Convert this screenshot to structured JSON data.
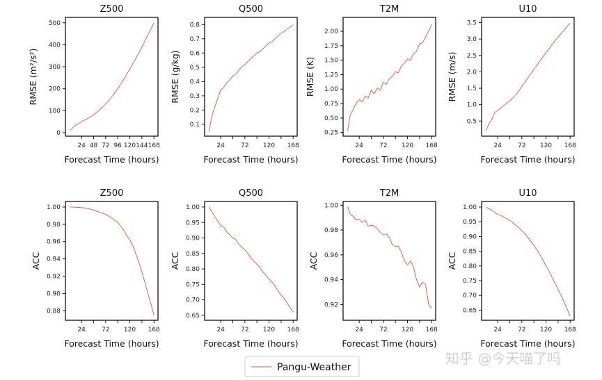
{
  "colors": {
    "series": "#e0503c",
    "axis": "#111111",
    "watermark": "#d0d0d0"
  },
  "legend": {
    "label": "Pangu-Weather",
    "placement": "bottom-center"
  },
  "watermark": "知乎 @今天喵了吗",
  "chart_data": [
    {
      "type": "line",
      "title": "Z500",
      "xlabel": "Forecast Time (hours)",
      "ylabel": "RMSE (m²/s²)",
      "xlim": [
        -8,
        176
      ],
      "ylim": [
        -16,
        525
      ],
      "xticks": [
        24,
        48,
        72,
        96,
        120,
        144,
        168
      ],
      "xtick_labels": [
        "24",
        "48",
        "72",
        "96",
        "120",
        "144",
        "168"
      ],
      "yticks": [
        0,
        100,
        200,
        300,
        400,
        500
      ],
      "ytick_labels": [
        "0",
        "100",
        "200",
        "300",
        "400",
        "500"
      ],
      "series": [
        {
          "name": "Pangu-Weather",
          "x": [
            1,
            6,
            12,
            18,
            24,
            30,
            36,
            42,
            48,
            54,
            60,
            66,
            72,
            78,
            84,
            90,
            96,
            102,
            108,
            114,
            120,
            126,
            132,
            138,
            144,
            150,
            156,
            162,
            168
          ],
          "y": [
            10,
            20,
            34,
            40,
            50,
            56,
            64,
            72,
            82,
            92,
            104,
            117,
            131,
            146,
            163,
            181,
            200,
            221,
            243,
            266,
            290,
            314,
            338,
            363,
            390,
            417,
            444,
            472,
            500
          ]
        }
      ]
    },
    {
      "type": "line",
      "title": "Q500",
      "xlabel": "Forecast Time (hours)",
      "ylabel": "RMSE (g/kg)",
      "xlim": [
        -8,
        176
      ],
      "ylim": [
        0.017,
        0.85
      ],
      "xticks": [
        24,
        48,
        72,
        96,
        120,
        144,
        168
      ],
      "xtick_labels": [
        "24",
        "",
        "72",
        "",
        "120",
        "",
        "168"
      ],
      "yticks": [
        0.1,
        0.2,
        0.3,
        0.4,
        0.5,
        0.6,
        0.7,
        0.8
      ],
      "ytick_labels": [
        "0.1",
        "0.2",
        "0.3",
        "0.4",
        "0.5",
        "0.6",
        "0.7",
        "0.8"
      ],
      "series": [
        {
          "name": "Pangu-Weather",
          "x": [
            1,
            6,
            12,
            18,
            24,
            30,
            36,
            42,
            48,
            54,
            60,
            66,
            72,
            78,
            84,
            90,
            96,
            102,
            108,
            114,
            120,
            126,
            132,
            138,
            144,
            150,
            156,
            162,
            168
          ],
          "y": [
            0.05,
            0.15,
            0.22,
            0.28,
            0.34,
            0.36,
            0.39,
            0.41,
            0.44,
            0.45,
            0.48,
            0.5,
            0.52,
            0.54,
            0.56,
            0.58,
            0.6,
            0.61,
            0.63,
            0.65,
            0.67,
            0.68,
            0.7,
            0.72,
            0.74,
            0.75,
            0.77,
            0.78,
            0.8
          ]
        }
      ]
    },
    {
      "type": "line",
      "title": "T2M",
      "xlabel": "Forecast Time (hours)",
      "ylabel": "RMSE (K)",
      "xlim": [
        -8,
        176
      ],
      "ylim": [
        0.186,
        2.24
      ],
      "xticks": [
        24,
        48,
        72,
        96,
        120,
        144,
        168
      ],
      "xtick_labels": [
        "24",
        "",
        "72",
        "",
        "120",
        "",
        "168"
      ],
      "yticks": [
        0.25,
        0.5,
        0.75,
        1.0,
        1.25,
        1.5,
        1.75,
        2.0
      ],
      "ytick_labels": [
        "0.25",
        "0.50",
        "0.75",
        "1.00",
        "1.25",
        "1.50",
        "1.75",
        "2.00"
      ],
      "series": [
        {
          "name": "Pangu-Weather",
          "x": [
            1,
            6,
            12,
            18,
            24,
            30,
            36,
            42,
            48,
            54,
            60,
            66,
            72,
            78,
            84,
            90,
            96,
            102,
            108,
            114,
            120,
            126,
            132,
            138,
            144,
            150,
            156,
            162,
            168
          ],
          "y": [
            0.28,
            0.55,
            0.65,
            0.75,
            0.82,
            0.78,
            0.88,
            0.85,
            0.98,
            0.92,
            1.02,
            0.98,
            1.12,
            1.08,
            1.18,
            1.22,
            1.3,
            1.28,
            1.4,
            1.45,
            1.52,
            1.5,
            1.62,
            1.65,
            1.78,
            1.8,
            1.9,
            2.0,
            2.12
          ]
        }
      ]
    },
    {
      "type": "line",
      "title": "U10",
      "xlabel": "Forecast Time (hours)",
      "ylabel": "RMSE (m/s)",
      "xlim": [
        -8,
        176
      ],
      "ylim": [
        0.04,
        3.66
      ],
      "xticks": [
        24,
        48,
        72,
        96,
        120,
        144,
        168
      ],
      "xtick_labels": [
        "24",
        "",
        "72",
        "",
        "120",
        "",
        "168"
      ],
      "yticks": [
        0.5,
        1.0,
        1.5,
        2.0,
        2.5,
        3.0,
        3.5
      ],
      "ytick_labels": [
        "0.5",
        "1.0",
        "1.5",
        "2.0",
        "2.5",
        "3.0",
        "3.5"
      ],
      "series": [
        {
          "name": "Pangu-Weather",
          "x": [
            1,
            6,
            12,
            18,
            24,
            30,
            36,
            42,
            48,
            54,
            60,
            66,
            72,
            78,
            84,
            90,
            96,
            102,
            108,
            114,
            120,
            126,
            132,
            138,
            144,
            150,
            156,
            162,
            168
          ],
          "y": [
            0.2,
            0.4,
            0.55,
            0.75,
            0.82,
            0.9,
            0.97,
            1.05,
            1.12,
            1.2,
            1.3,
            1.42,
            1.55,
            1.68,
            1.82,
            1.95,
            2.08,
            2.2,
            2.33,
            2.46,
            2.58,
            2.7,
            2.83,
            2.95,
            3.05,
            3.17,
            3.27,
            3.38,
            3.49
          ]
        }
      ]
    },
    {
      "type": "line",
      "title": "Z500",
      "xlabel": "Forecast Time (hours)",
      "ylabel": "ACC",
      "xlim": [
        -8,
        176
      ],
      "ylim": [
        0.869,
        1.0064
      ],
      "xticks": [
        24,
        48,
        72,
        96,
        120,
        144,
        168
      ],
      "xtick_labels": [
        "24",
        "",
        "72",
        "",
        "120",
        "",
        "168"
      ],
      "yticks": [
        0.88,
        0.9,
        0.92,
        0.94,
        0.96,
        0.98,
        1.0
      ],
      "ytick_labels": [
        "0.88",
        "0.90",
        "0.92",
        "0.94",
        "0.96",
        "0.98",
        "1.00"
      ],
      "series": [
        {
          "name": "Pangu-Weather",
          "x": [
            1,
            6,
            12,
            18,
            24,
            30,
            36,
            42,
            48,
            54,
            60,
            66,
            72,
            78,
            84,
            90,
            96,
            102,
            108,
            114,
            120,
            126,
            132,
            138,
            144,
            150,
            156,
            162,
            168
          ],
          "y": [
            1.0,
            0.9999,
            0.9998,
            0.9996,
            0.9993,
            0.9988,
            0.9982,
            0.9974,
            0.9965,
            0.9952,
            0.9938,
            0.9928,
            0.9915,
            0.9895,
            0.987,
            0.985,
            0.982,
            0.978,
            0.973,
            0.967,
            0.962,
            0.955,
            0.946,
            0.936,
            0.925,
            0.913,
            0.9,
            0.888,
            0.875
          ]
        }
      ]
    },
    {
      "type": "line",
      "title": "Q500",
      "xlabel": "Forecast Time (hours)",
      "ylabel": "ACC",
      "xlim": [
        -8,
        176
      ],
      "ylim": [
        0.634,
        1.018
      ],
      "xticks": [
        24,
        48,
        72,
        96,
        120,
        144,
        168
      ],
      "xtick_labels": [
        "24",
        "",
        "72",
        "",
        "120",
        "",
        "168"
      ],
      "yticks": [
        0.65,
        0.7,
        0.75,
        0.8,
        0.85,
        0.9,
        0.95,
        1.0
      ],
      "ytick_labels": [
        "0.65",
        "0.70",
        "0.75",
        "0.80",
        "0.85",
        "0.90",
        "0.95",
        "1.00"
      ],
      "series": [
        {
          "name": "Pangu-Weather",
          "x": [
            1,
            6,
            12,
            18,
            24,
            30,
            36,
            42,
            48,
            54,
            60,
            66,
            72,
            78,
            84,
            90,
            96,
            102,
            108,
            114,
            120,
            126,
            132,
            138,
            144,
            150,
            156,
            162,
            168
          ],
          "y": [
            1.0,
            0.985,
            0.97,
            0.955,
            0.94,
            0.935,
            0.92,
            0.91,
            0.9,
            0.895,
            0.88,
            0.87,
            0.862,
            0.85,
            0.835,
            0.825,
            0.815,
            0.805,
            0.79,
            0.78,
            0.768,
            0.758,
            0.745,
            0.73,
            0.715,
            0.705,
            0.69,
            0.675,
            0.66
          ]
        }
      ]
    },
    {
      "type": "line",
      "title": "T2M",
      "xlabel": "Forecast Time (hours)",
      "ylabel": "ACC",
      "xlim": [
        -8,
        176
      ],
      "ylim": [
        0.9073,
        1.003
      ],
      "xticks": [
        24,
        48,
        72,
        96,
        120,
        144,
        168
      ],
      "xtick_labels": [
        "24",
        "",
        "72",
        "",
        "120",
        "",
        "168"
      ],
      "yticks": [
        0.92,
        0.94,
        0.96,
        0.98,
        1.0
      ],
      "ytick_labels": [
        "0.92",
        "0.94",
        "0.96",
        "0.98",
        "1.00"
      ],
      "series": [
        {
          "name": "Pangu-Weather",
          "x": [
            1,
            6,
            12,
            18,
            24,
            30,
            36,
            42,
            48,
            54,
            60,
            66,
            72,
            78,
            84,
            90,
            96,
            102,
            108,
            114,
            120,
            126,
            132,
            138,
            144,
            150,
            156,
            162,
            168
          ],
          "y": [
            0.999,
            0.993,
            0.991,
            0.988,
            0.989,
            0.986,
            0.988,
            0.983,
            0.984,
            0.983,
            0.981,
            0.978,
            0.976,
            0.977,
            0.974,
            0.968,
            0.967,
            0.967,
            0.962,
            0.955,
            0.952,
            0.955,
            0.95,
            0.94,
            0.934,
            0.938,
            0.936,
            0.92,
            0.917
          ]
        }
      ]
    },
    {
      "type": "line",
      "title": "U10",
      "xlabel": "Forecast Time (hours)",
      "ylabel": "ACC",
      "xlim": [
        -8,
        176
      ],
      "ylim": [
        0.6155,
        1.019
      ],
      "xticks": [
        24,
        48,
        72,
        96,
        120,
        144,
        168
      ],
      "xtick_labels": [
        "24",
        "",
        "72",
        "",
        "120",
        "",
        "168"
      ],
      "yticks": [
        0.65,
        0.7,
        0.75,
        0.8,
        0.85,
        0.9,
        0.95,
        1.0
      ],
      "ytick_labels": [
        "0.65",
        "0.70",
        "0.75",
        "0.80",
        "0.85",
        "0.90",
        "0.95",
        "1.00"
      ],
      "series": [
        {
          "name": "Pangu-Weather",
          "x": [
            1,
            6,
            12,
            18,
            24,
            30,
            36,
            42,
            48,
            54,
            60,
            66,
            72,
            78,
            84,
            90,
            96,
            102,
            108,
            114,
            120,
            126,
            132,
            138,
            144,
            150,
            156,
            162,
            168
          ],
          "y": [
            1.0,
            0.995,
            0.99,
            0.982,
            0.975,
            0.972,
            0.966,
            0.96,
            0.955,
            0.947,
            0.938,
            0.93,
            0.92,
            0.91,
            0.897,
            0.884,
            0.87,
            0.855,
            0.838,
            0.82,
            0.8,
            0.782,
            0.762,
            0.742,
            0.72,
            0.7,
            0.678,
            0.654,
            0.63
          ]
        }
      ]
    }
  ]
}
